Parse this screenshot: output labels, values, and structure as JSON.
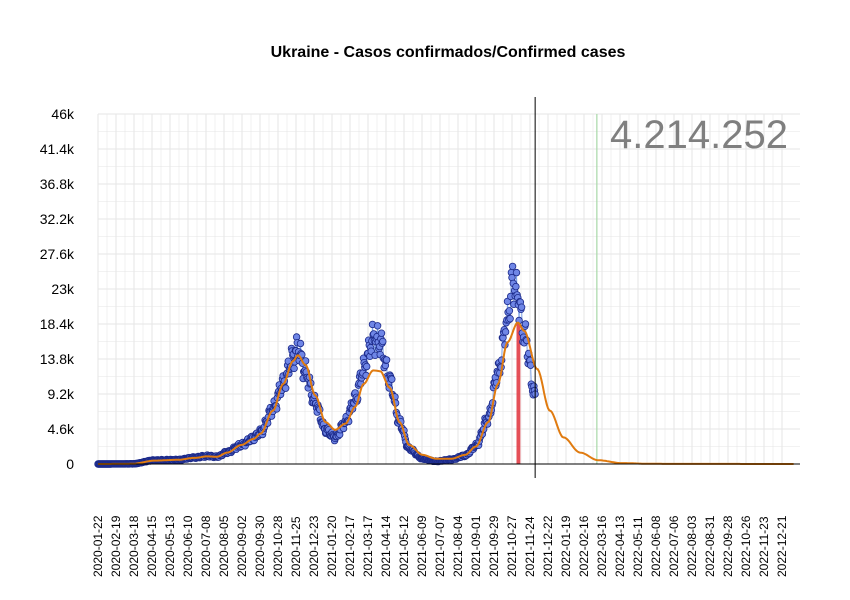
{
  "chart_data": {
    "type": "scatter",
    "title": "Ukraine - Casos confirmados/Confirmed cases",
    "total_label": "4.214.252",
    "xlabel": "",
    "ylabel": "",
    "ylim": [
      0,
      46000
    ],
    "x_range": [
      "2020-01-22",
      "2023-01-18"
    ],
    "y_ticks": [
      {
        "value": 0,
        "label": "0"
      },
      {
        "value": 4600,
        "label": "4.6k"
      },
      {
        "value": 9200,
        "label": "9.2k"
      },
      {
        "value": 13800,
        "label": "13.8k"
      },
      {
        "value": 18400,
        "label": "18.4k"
      },
      {
        "value": 23000,
        "label": "23k"
      },
      {
        "value": 27600,
        "label": "27.6k"
      },
      {
        "value": 32200,
        "label": "32.2k"
      },
      {
        "value": 36800,
        "label": "36.8k"
      },
      {
        "value": 41400,
        "label": "41.4k"
      },
      {
        "value": 46000,
        "label": "46k"
      }
    ],
    "x_ticks": [
      "2020-01-22",
      "2020-02-19",
      "2020-03-18",
      "2020-04-15",
      "2020-05-13",
      "2020-06-10",
      "2020-07-08",
      "2020-08-05",
      "2020-09-02",
      "2020-09-30",
      "2020-10-28",
      "2020-11-25",
      "2020-12-23",
      "2021-01-20",
      "2021-02-17",
      "2021-03-17",
      "2021-04-14",
      "2021-05-12",
      "2021-06-09",
      "2021-07-07",
      "2021-08-04",
      "2021-09-01",
      "2021-09-29",
      "2021-10-27",
      "2021-11-24",
      "2021-12-22",
      "2022-01-19",
      "2022-02-16",
      "2022-03-16",
      "2022-04-13",
      "2022-05-11",
      "2022-06-08",
      "2022-07-06",
      "2022-08-03",
      "2022-08-31",
      "2022-09-28",
      "2022-10-26",
      "2022-11-23",
      "2022-12-21"
    ],
    "current_date": "2021-12-02",
    "projection_marker_date": "2022-03-08",
    "peak_band": [
      "2021-11-03",
      "2021-11-09"
    ],
    "grid": true,
    "colors": {
      "points_fill": "#6f86e6",
      "points_stroke": "#1c2a8a",
      "daily_line": "#7fa4ea",
      "fit_line": "#e07b10",
      "current_line": "#000000",
      "marker_line": "#a8d8a8",
      "peak_band": "#e0303a",
      "grid": "#e6e6e6",
      "total": "#7f7f7f"
    },
    "fit_anchors": [
      {
        "date": "2020-01-22",
        "value": 0
      },
      {
        "date": "2020-03-15",
        "value": 20
      },
      {
        "date": "2020-04-20",
        "value": 450
      },
      {
        "date": "2020-05-25",
        "value": 550
      },
      {
        "date": "2020-06-20",
        "value": 800
      },
      {
        "date": "2020-07-10",
        "value": 1000
      },
      {
        "date": "2020-07-25",
        "value": 950
      },
      {
        "date": "2020-08-10",
        "value": 1500
      },
      {
        "date": "2020-09-01",
        "value": 2500
      },
      {
        "date": "2020-09-20",
        "value": 3300
      },
      {
        "date": "2020-10-01",
        "value": 4000
      },
      {
        "date": "2020-10-20",
        "value": 7000
      },
      {
        "date": "2020-11-05",
        "value": 10500
      },
      {
        "date": "2020-11-20",
        "value": 13500
      },
      {
        "date": "2020-11-28",
        "value": 14300
      },
      {
        "date": "2020-12-10",
        "value": 13000
      },
      {
        "date": "2020-12-25",
        "value": 9000
      },
      {
        "date": "2021-01-10",
        "value": 5500
      },
      {
        "date": "2021-01-25",
        "value": 4500
      },
      {
        "date": "2021-02-10",
        "value": 5300
      },
      {
        "date": "2021-02-25",
        "value": 7500
      },
      {
        "date": "2021-03-10",
        "value": 10500
      },
      {
        "date": "2021-03-25",
        "value": 12300
      },
      {
        "date": "2021-04-05",
        "value": 12200
      },
      {
        "date": "2021-04-20",
        "value": 10000
      },
      {
        "date": "2021-05-05",
        "value": 5500
      },
      {
        "date": "2021-05-20",
        "value": 2500
      },
      {
        "date": "2021-06-10",
        "value": 1200
      },
      {
        "date": "2021-07-01",
        "value": 700
      },
      {
        "date": "2021-07-25",
        "value": 700
      },
      {
        "date": "2021-08-15",
        "value": 1200
      },
      {
        "date": "2021-09-01",
        "value": 2300
      },
      {
        "date": "2021-09-20",
        "value": 5500
      },
      {
        "date": "2021-10-05",
        "value": 10500
      },
      {
        "date": "2021-10-20",
        "value": 16000
      },
      {
        "date": "2021-11-05",
        "value": 18600
      },
      {
        "date": "2021-11-15",
        "value": 17500
      },
      {
        "date": "2021-12-05",
        "value": 12500
      },
      {
        "date": "2021-12-25",
        "value": 7000
      },
      {
        "date": "2022-01-15",
        "value": 3500
      },
      {
        "date": "2022-02-10",
        "value": 1500
      },
      {
        "date": "2022-03-10",
        "value": 500
      },
      {
        "date": "2022-04-15",
        "value": 120
      },
      {
        "date": "2022-06-01",
        "value": 20
      },
      {
        "date": "2023-01-10",
        "value": 0
      }
    ],
    "daily_anchors": [
      {
        "date": "2020-01-22",
        "value": 0
      },
      {
        "date": "2020-03-15",
        "value": 20
      },
      {
        "date": "2020-04-20",
        "value": 500
      },
      {
        "date": "2020-05-25",
        "value": 550
      },
      {
        "date": "2020-06-20",
        "value": 850
      },
      {
        "date": "2020-07-10",
        "value": 1050
      },
      {
        "date": "2020-07-25",
        "value": 950
      },
      {
        "date": "2020-08-10",
        "value": 1550
      },
      {
        "date": "2020-09-01",
        "value": 2500
      },
      {
        "date": "2020-09-20",
        "value": 3400
      },
      {
        "date": "2020-10-01",
        "value": 4200
      },
      {
        "date": "2020-10-20",
        "value": 7200
      },
      {
        "date": "2020-11-05",
        "value": 10500
      },
      {
        "date": "2020-11-20",
        "value": 14000
      },
      {
        "date": "2020-11-28",
        "value": 15200
      },
      {
        "date": "2020-12-10",
        "value": 12000
      },
      {
        "date": "2020-12-25",
        "value": 8000
      },
      {
        "date": "2021-01-10",
        "value": 4500
      },
      {
        "date": "2021-01-25",
        "value": 3500
      },
      {
        "date": "2021-02-10",
        "value": 5500
      },
      {
        "date": "2021-02-25",
        "value": 8500
      },
      {
        "date": "2021-03-10",
        "value": 12500
      },
      {
        "date": "2021-03-25",
        "value": 16500
      },
      {
        "date": "2021-04-05",
        "value": 16000
      },
      {
        "date": "2021-04-20",
        "value": 11000
      },
      {
        "date": "2021-05-05",
        "value": 5500
      },
      {
        "date": "2021-05-20",
        "value": 2000
      },
      {
        "date": "2021-06-10",
        "value": 700
      },
      {
        "date": "2021-07-01",
        "value": 350
      },
      {
        "date": "2021-07-25",
        "value": 600
      },
      {
        "date": "2021-08-15",
        "value": 1100
      },
      {
        "date": "2021-09-01",
        "value": 2400
      },
      {
        "date": "2021-09-20",
        "value": 6000
      },
      {
        "date": "2021-10-05",
        "value": 12000
      },
      {
        "date": "2021-10-20",
        "value": 19000
      },
      {
        "date": "2021-10-28",
        "value": 24000
      },
      {
        "date": "2021-11-05",
        "value": 22000
      },
      {
        "date": "2021-11-15",
        "value": 17000
      },
      {
        "date": "2021-12-02",
        "value": 9000
      }
    ]
  }
}
